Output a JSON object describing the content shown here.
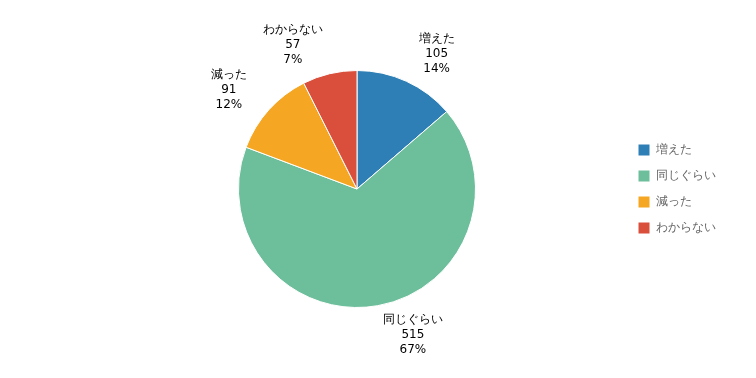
{
  "chart_data": {
    "type": "pie",
    "categories": [
      "増えた",
      "同じぐらい",
      "減った",
      "わからない"
    ],
    "values": [
      105,
      515,
      91,
      57
    ],
    "percentages": [
      {
        "value": 14,
        "label": "14%"
      },
      {
        "value": 67,
        "label": "67%"
      },
      {
        "value": 12,
        "label": "12%"
      },
      {
        "value": 7,
        "label": "7%"
      }
    ],
    "colors": [
      "#2e7fb5",
      "#6dbe9b",
      "#f5a623",
      "#d94f3c"
    ],
    "data_labels": true,
    "legend": "right"
  }
}
